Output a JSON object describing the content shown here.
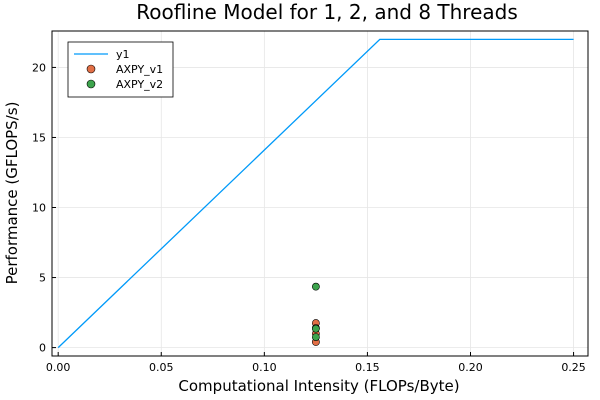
{
  "chart_data": {
    "type": "line",
    "title": "Roofline Model for 1, 2, and 8 Threads",
    "xlabel": "Computational Intensity (FLOPs/Byte)",
    "ylabel": "Performance (GFLOPS/s)",
    "xlim": [
      -0.003,
      0.257
    ],
    "ylim": [
      -0.6,
      22.6
    ],
    "xticks": [
      0.0,
      0.05,
      0.1,
      0.15,
      0.2,
      0.25
    ],
    "xtick_labels": [
      "0.00",
      "0.05",
      "0.10",
      "0.15",
      "0.20",
      "0.25"
    ],
    "yticks": [
      0,
      5,
      10,
      15,
      20
    ],
    "ytick_labels": [
      "0",
      "5",
      "10",
      "15",
      "20"
    ],
    "grid": true,
    "legend_position": "top-left",
    "series": [
      {
        "name": "y1",
        "kind": "line",
        "color": "#009AF9",
        "points": [
          [
            0.0,
            0.0
          ],
          [
            0.156,
            22.0
          ],
          [
            0.25,
            22.0
          ]
        ]
      },
      {
        "name": "AXPY_v1",
        "kind": "scatter",
        "color": "#E26F46",
        "points": [
          [
            0.125,
            1.75
          ],
          [
            0.125,
            1.4
          ],
          [
            0.125,
            1.0
          ],
          [
            0.125,
            0.4
          ]
        ]
      },
      {
        "name": "AXPY_v2",
        "kind": "scatter",
        "color": "#3DA44D",
        "points": [
          [
            0.125,
            4.35
          ],
          [
            0.125,
            1.35
          ],
          [
            0.125,
            0.75
          ]
        ]
      }
    ]
  }
}
